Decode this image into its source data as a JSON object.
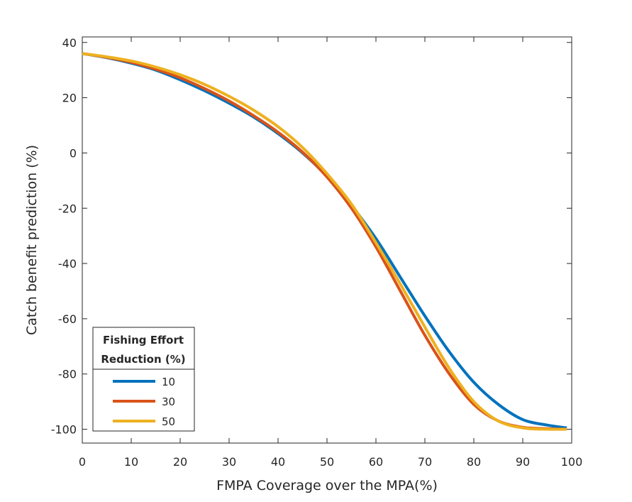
{
  "chart_data": {
    "type": "line",
    "title": "",
    "xlabel": "FMPA Coverage over the MPA(%)",
    "ylabel": "Catch benefit prediction (%)",
    "xlim": [
      0,
      100
    ],
    "ylim": [
      -105,
      42
    ],
    "xticks": [
      0,
      10,
      20,
      30,
      40,
      50,
      60,
      70,
      80,
      90,
      100
    ],
    "yticks": [
      40,
      20,
      0,
      -20,
      -40,
      -60,
      -80,
      -100
    ],
    "grid": false,
    "legend": {
      "title_line1": "Fishing Effort",
      "title_line2": "Reduction (%)",
      "placement": "bottom-left"
    },
    "series": [
      {
        "name": "10",
        "color": "#0072BD",
        "x": [
          0,
          5,
          10,
          15,
          20,
          25,
          30,
          35,
          40,
          45,
          50,
          55,
          60,
          65,
          70,
          75,
          80,
          85,
          90,
          95,
          99
        ],
        "y": [
          36,
          34.5,
          32.5,
          30,
          26.5,
          22.5,
          18,
          13,
          7,
          0,
          -8.5,
          -19,
          -31,
          -45,
          -59,
          -72,
          -83,
          -91,
          -96.5,
          -98.5,
          -99.5
        ]
      },
      {
        "name": "30",
        "color": "#D95319",
        "x": [
          0,
          5,
          10,
          15,
          20,
          25,
          30,
          35,
          40,
          45,
          50,
          55,
          60,
          65,
          70,
          75,
          80,
          85,
          90,
          95,
          99
        ],
        "y": [
          36,
          34.6,
          32.8,
          30.3,
          27.2,
          23.3,
          18.8,
          13.5,
          7.5,
          0.3,
          -8.7,
          -20,
          -34,
          -50,
          -66,
          -80,
          -91,
          -97,
          -99.3,
          -99.8,
          -100
        ]
      },
      {
        "name": "50",
        "color": "#EDB120",
        "x": [
          0,
          5,
          10,
          15,
          20,
          25,
          30,
          35,
          40,
          45,
          50,
          55,
          60,
          65,
          70,
          75,
          80,
          85,
          90,
          95,
          99
        ],
        "y": [
          36,
          34.8,
          33.3,
          31.1,
          28.3,
          24.8,
          20.5,
          15.5,
          9.5,
          2,
          -7.5,
          -18.5,
          -32.5,
          -47.5,
          -63,
          -78,
          -90,
          -97,
          -99.5,
          -100,
          -100
        ]
      }
    ]
  }
}
